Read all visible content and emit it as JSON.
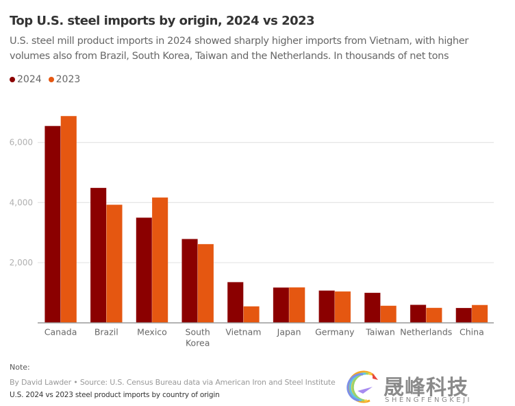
{
  "title": "Top U.S. steel imports by origin, 2024 vs 2023",
  "subtitle": "U.S. steel mill product imports in 2024 showed sharply higher imports from Vietnam, with higher volumes also from Brazil, South Korea, Taiwan and the Netherlands. In thousands of net tons",
  "legend": [
    {
      "label": "2024",
      "color": "#8b0000"
    },
    {
      "label": "2023",
      "color": "#e55711"
    }
  ],
  "footer": {
    "note": "Note:",
    "byline": "By David Lawder • Source: U.S. Census Bureau data via American Iron and Steel Institute",
    "caption": "U.S. 2024 vs 2023 steel product imports by country of origin"
  },
  "watermark": {
    "text": "晟峰科技",
    "sub": "SHENGFENGKEJI"
  },
  "chart_data": {
    "type": "bar",
    "title": "Top U.S. steel imports by origin, 2024 vs 2023",
    "xlabel": "",
    "ylabel": "Thousands of net tons",
    "categories": [
      "Canada",
      "Brazil",
      "Mexico",
      "South Korea",
      "Vietnam",
      "Japan",
      "Germany",
      "Taiwan",
      "Netherlands",
      "China"
    ],
    "category_lines": [
      [
        "Canada"
      ],
      [
        "Brazil"
      ],
      [
        "Mexico"
      ],
      [
        "South",
        "Korea"
      ],
      [
        "Vietnam"
      ],
      [
        "Japan"
      ],
      [
        "Germany"
      ],
      [
        "Taiwan"
      ],
      [
        "Netherlands"
      ],
      [
        "China"
      ]
    ],
    "series": [
      {
        "name": "2024",
        "color": "#8b0000",
        "values": [
          6550,
          4490,
          3500,
          2790,
          1355,
          1175,
          1075,
          1000,
          600,
          495
        ]
      },
      {
        "name": "2023",
        "color": "#e55711",
        "values": [
          6880,
          3930,
          4170,
          2620,
          550,
          1180,
          1045,
          570,
          500,
          595
        ]
      }
    ],
    "ylim": [
      0,
      7000
    ],
    "yticks": [
      2000,
      4000,
      6000
    ],
    "ytick_labels": [
      "2,000",
      "4,000",
      "6,000"
    ],
    "grid": true,
    "legend_position": "top-left"
  }
}
